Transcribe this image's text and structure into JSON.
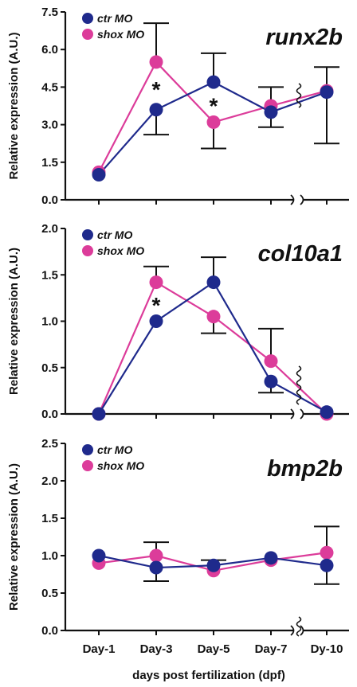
{
  "figure": {
    "xlabel": "days post fertilization (dpf)",
    "xticks": [
      "Day-1",
      "Day-3",
      "Day-5",
      "Day-7",
      "Dy-10"
    ]
  },
  "colors": {
    "ctr": "#1f2a8c",
    "shox": "#dc3c9a"
  },
  "chart_data": [
    {
      "type": "line",
      "gene": "runx2b",
      "ylabel": "Relative expression (A.U.)",
      "ylim": [
        0,
        7.5
      ],
      "yticks": [
        "0.0",
        "1.5",
        "3.0",
        "4.5",
        "6.0",
        "7.5"
      ],
      "categories": [
        "Day-1",
        "Day-3",
        "Day-5",
        "Day-7",
        "Dy-10"
      ],
      "series": [
        {
          "name": "ctr MO",
          "values": [
            1.0,
            3.6,
            4.7,
            3.5,
            4.3
          ],
          "err_up": [
            null,
            null,
            1.15,
            1.0,
            1.0
          ],
          "err_down": [
            null,
            1.0,
            null,
            0.6,
            2.05
          ]
        },
        {
          "name": "shox MO",
          "values": [
            1.1,
            5.5,
            3.1,
            3.75,
            4.35
          ],
          "err_up": [
            null,
            1.55,
            null,
            null,
            null
          ],
          "err_down": [
            null,
            null,
            1.05,
            null,
            null
          ]
        }
      ],
      "significance": [
        {
          "category": "Day-3",
          "label": "*"
        },
        {
          "category": "Day-5",
          "label": "*"
        }
      ],
      "axis_break": "between Day-7 and Dy-10"
    },
    {
      "type": "line",
      "gene": "col10a1",
      "ylabel": "Relative expression (A.U.)",
      "ylim": [
        0,
        2.0
      ],
      "yticks": [
        "0.0",
        "0.5",
        "1.0",
        "1.5",
        "2.0"
      ],
      "categories": [
        "Day-1",
        "Day-3",
        "Day-5",
        "Day-7",
        "Dy-10"
      ],
      "series": [
        {
          "name": "ctr MO",
          "values": [
            0.0,
            1.0,
            1.42,
            0.35,
            0.02
          ],
          "err_up": [
            null,
            null,
            0.27,
            null,
            null
          ],
          "err_down": [
            null,
            null,
            null,
            0.12,
            null
          ]
        },
        {
          "name": "shox MO",
          "values": [
            0.0,
            1.42,
            1.05,
            0.57,
            0.0
          ],
          "err_up": [
            null,
            0.17,
            null,
            0.35,
            null
          ],
          "err_down": [
            null,
            null,
            0.18,
            null,
            null
          ]
        }
      ],
      "significance": [
        {
          "category": "Day-3",
          "label": "*"
        }
      ],
      "axis_break": "between Day-7 and Dy-10"
    },
    {
      "type": "line",
      "gene": "bmp2b",
      "ylabel": "Relative expression (A.U.)",
      "ylim": [
        0,
        2.5
      ],
      "yticks": [
        "0.0",
        "0.5",
        "1.0",
        "1.5",
        "2.0",
        "2.5"
      ],
      "categories": [
        "Day-1",
        "Day-3",
        "Day-5",
        "Day-7",
        "Dy-10"
      ],
      "series": [
        {
          "name": "ctr MO",
          "values": [
            1.0,
            0.84,
            0.87,
            0.97,
            0.87
          ],
          "err_up": [
            null,
            null,
            0.07,
            null,
            null
          ],
          "err_down": [
            null,
            0.18,
            null,
            null,
            0.25
          ]
        },
        {
          "name": "shox MO",
          "values": [
            0.9,
            1.0,
            0.8,
            0.94,
            1.04
          ],
          "err_up": [
            null,
            0.18,
            null,
            null,
            0.35
          ],
          "err_down": [
            null,
            null,
            null,
            null,
            null
          ]
        }
      ],
      "significance": [],
      "axis_break": "between Day-7 and Dy-10"
    }
  ]
}
